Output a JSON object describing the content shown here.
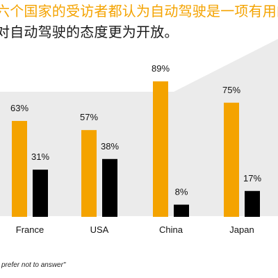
{
  "headline": {
    "line1": "六个国家的受访者都认为自动驾驶是一项有用的",
    "line2": "对自动驾驶的态度更为开放。"
  },
  "footnote": "prefer not to answer\"",
  "colors": {
    "accent_orange": "#f4a300",
    "bar_dark": "#000000",
    "background_band": "#ebebeb",
    "text_dark": "#1a1a1a"
  },
  "chart_data": {
    "type": "bar",
    "categories": [
      "France",
      "USA",
      "China",
      "Japan"
    ],
    "series": [
      {
        "values": [
          63,
          57,
          89,
          75
        ],
        "labels": [
          "63%",
          "57%",
          "89%",
          "75%"
        ],
        "color": "#f4a300"
      },
      {
        "values": [
          31,
          38,
          8,
          17
        ],
        "labels": [
          "31%",
          "38%",
          "8%",
          "17%"
        ],
        "color": "#000000"
      }
    ],
    "ylim": [
      0,
      100
    ],
    "value_unit": "%",
    "grid": false,
    "legend": "none"
  }
}
